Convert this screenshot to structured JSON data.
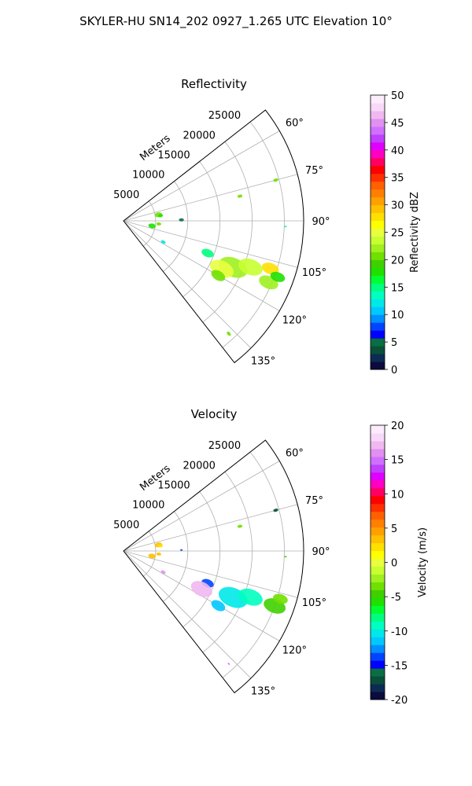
{
  "figure_title": "SKYLER-HU  SN14_202  0927_1.265 UTC Elevation 10°",
  "chart_data": [
    {
      "type": "polar-sector",
      "title": "Reflectivity",
      "range_axis_label": "Meters",
      "range_ticks": [
        5000,
        10000,
        15000,
        20000,
        25000
      ],
      "rlim": [
        0,
        28000
      ],
      "azimuth_range_deg": [
        52,
        142
      ],
      "azimuth_ticks": [
        60,
        75,
        90,
        105,
        120,
        135
      ],
      "azimuth_tick_labels": [
        "60°",
        "75°",
        "90°",
        "105°",
        "120°",
        "135°"
      ],
      "grid": true,
      "colorbar": {
        "label": "Reflectivity dBZ",
        "range": [
          0,
          50
        ],
        "ticks": [
          0,
          5,
          10,
          15,
          20,
          25,
          30,
          35,
          40,
          45,
          50
        ],
        "colors": [
          "#0b0b3d",
          "#0c2b52",
          "#0a4f3a",
          "#0a6e42",
          "#0000ff",
          "#0044ff",
          "#0090ff",
          "#00c8ff",
          "#00e8e8",
          "#00ffc0",
          "#00ff80",
          "#00ff30",
          "#20e000",
          "#40d000",
          "#70e000",
          "#a0f020",
          "#c8ff30",
          "#e8ff40",
          "#ffff00",
          "#ffe000",
          "#ffc000",
          "#ffa000",
          "#ff8000",
          "#ff6000",
          "#ff3000",
          "#ff0000",
          "#ff0060",
          "#ff00c0",
          "#e000ff",
          "#c040ff",
          "#d070ff",
          "#e090f0",
          "#f0b8f0",
          "#f8d8f8",
          "#fcecfc"
        ]
      },
      "echoes": [
        {
          "az": 75,
          "r": 24500,
          "dbz": 20,
          "size": 2
        },
        {
          "az": 78,
          "r": 18500,
          "dbz": 20,
          "size": 2
        },
        {
          "az": 80,
          "r": 5500,
          "dbz": 20,
          "size": 3
        },
        {
          "az": 82,
          "r": 5800,
          "dbz": 18,
          "size": 2
        },
        {
          "az": 89,
          "r": 9000,
          "dbz": 5,
          "size": 2
        },
        {
          "az": 95,
          "r": 5500,
          "dbz": 20,
          "size": 2
        },
        {
          "az": 100,
          "r": 4500,
          "dbz": 18,
          "size": 3
        },
        {
          "az": 92,
          "r": 25200,
          "dbz": 15,
          "size": 1
        },
        {
          "az": 118,
          "r": 7000,
          "dbz": 12,
          "size": 2
        },
        {
          "az": 111,
          "r": 14000,
          "dbz": 15,
          "size": 5
        },
        {
          "az": 113,
          "r": 18500,
          "dbz": 22,
          "size": 12
        },
        {
          "az": 110,
          "r": 21000,
          "dbz": 24,
          "size": 10
        },
        {
          "az": 113,
          "r": 24500,
          "dbz": 22,
          "size": 8
        },
        {
          "az": 116,
          "r": 17000,
          "dbz": 25,
          "size": 10
        },
        {
          "az": 108,
          "r": 24000,
          "dbz": 28,
          "size": 7
        },
        {
          "az": 120,
          "r": 17000,
          "dbz": 20,
          "size": 6
        },
        {
          "az": 110,
          "r": 25500,
          "dbz": 18,
          "size": 6
        },
        {
          "az": 137,
          "r": 24000,
          "dbz": 20,
          "size": 2
        }
      ]
    },
    {
      "type": "polar-sector",
      "title": "Velocity",
      "range_axis_label": "Meters",
      "range_ticks": [
        5000,
        10000,
        15000,
        20000,
        25000
      ],
      "rlim": [
        0,
        28000
      ],
      "azimuth_range_deg": [
        52,
        142
      ],
      "azimuth_ticks": [
        60,
        75,
        90,
        105,
        120,
        135
      ],
      "azimuth_tick_labels": [
        "60°",
        "75°",
        "90°",
        "105°",
        "120°",
        "135°"
      ],
      "grid": true,
      "colorbar": {
        "label": "Velocity (m/s)",
        "range": [
          -20,
          20
        ],
        "ticks": [
          -20,
          -15,
          -10,
          -5,
          0,
          5,
          10,
          15,
          20
        ],
        "colors": [
          "#0b0b3d",
          "#0c2b52",
          "#0a4f3a",
          "#0a6e42",
          "#0000ff",
          "#0044ff",
          "#0090ff",
          "#00c8ff",
          "#00e8e8",
          "#00ffc0",
          "#00ff80",
          "#00ff30",
          "#20e000",
          "#40d000",
          "#70e000",
          "#a0f020",
          "#c8ff30",
          "#e8ff40",
          "#ffff00",
          "#ffe000",
          "#ffc000",
          "#ffa000",
          "#ff8000",
          "#ff6000",
          "#ff3000",
          "#ff0000",
          "#ff0060",
          "#ff00c0",
          "#e000ff",
          "#c040ff",
          "#d070ff",
          "#e090f0",
          "#f0b8f0",
          "#f8d8f8",
          "#fcecfc"
        ]
      },
      "echoes": [
        {
          "az": 75,
          "r": 24500,
          "vel": -17,
          "size": 2
        },
        {
          "az": 78,
          "r": 18500,
          "vel": -3,
          "size": 2
        },
        {
          "az": 80,
          "r": 5500,
          "vel": 3,
          "size": 3
        },
        {
          "az": 82,
          "r": 5800,
          "vel": 2,
          "size": 2
        },
        {
          "az": 89,
          "r": 9000,
          "vel": -14,
          "size": 1
        },
        {
          "az": 95,
          "r": 5500,
          "vel": 3,
          "size": 2
        },
        {
          "az": 100,
          "r": 4500,
          "vel": 3,
          "size": 3
        },
        {
          "az": 92,
          "r": 25200,
          "vel": -5,
          "size": 1
        },
        {
          "az": 118,
          "r": 7000,
          "vel": 16,
          "size": 2
        },
        {
          "az": 111,
          "r": 14000,
          "vel": -14,
          "size": 5
        },
        {
          "az": 116,
          "r": 13500,
          "vel": 17,
          "size": 9
        },
        {
          "az": 113,
          "r": 18500,
          "vel": -10,
          "size": 12
        },
        {
          "az": 110,
          "r": 21000,
          "vel": -9,
          "size": 10
        },
        {
          "az": 110,
          "r": 25000,
          "vel": -5,
          "size": 9
        },
        {
          "az": 107,
          "r": 25500,
          "vel": -3,
          "size": 6
        },
        {
          "az": 120,
          "r": 17000,
          "vel": -12,
          "size": 6
        },
        {
          "az": 137,
          "r": 24000,
          "vel": 15,
          "size": 1
        }
      ]
    }
  ]
}
